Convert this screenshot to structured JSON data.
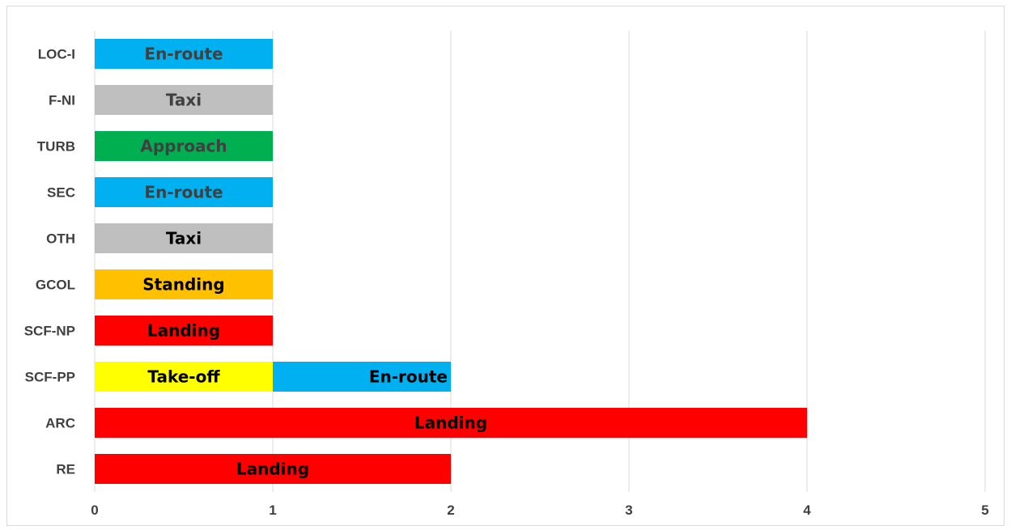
{
  "chart_data": {
    "type": "bar",
    "orientation": "horizontal",
    "stacked": true,
    "title": "",
    "xlabel": "",
    "ylabel": "",
    "xlim": [
      0,
      5
    ],
    "x_ticks": [
      "0",
      "1",
      "2",
      "3",
      "4",
      "5"
    ],
    "grid": true,
    "categories": [
      "LOC-I",
      "F-NI",
      "TURB",
      "SEC",
      "OTH",
      "GCOL",
      "SCF-NP",
      "SCF-PP",
      "ARC",
      "RE"
    ],
    "bars": [
      {
        "category": "LOC-I",
        "segments": [
          {
            "label": "En-route",
            "value": 1,
            "color": "#00b0f0",
            "text_color": "#404040"
          }
        ]
      },
      {
        "category": "F-NI",
        "segments": [
          {
            "label": "Taxi",
            "value": 1,
            "color": "#bfbfbf",
            "text_color": "#404040"
          }
        ]
      },
      {
        "category": "TURB",
        "segments": [
          {
            "label": "Approach",
            "value": 1,
            "color": "#00b050",
            "text_color": "#404040"
          }
        ]
      },
      {
        "category": "SEC",
        "segments": [
          {
            "label": "En-route",
            "value": 1,
            "color": "#00b0f0",
            "text_color": "#404040"
          }
        ]
      },
      {
        "category": "OTH",
        "segments": [
          {
            "label": "Taxi",
            "value": 1,
            "color": "#bfbfbf",
            "text_color": "#000000"
          }
        ]
      },
      {
        "category": "GCOL",
        "segments": [
          {
            "label": "Standing",
            "value": 1,
            "color": "#ffc000",
            "text_color": "#000000"
          }
        ]
      },
      {
        "category": "SCF-NP",
        "segments": [
          {
            "label": "Landing",
            "value": 1,
            "color": "#ff0000",
            "text_color": "#000000"
          }
        ]
      },
      {
        "category": "SCF-PP",
        "segments": [
          {
            "label": "Take-off",
            "value": 1,
            "color": "#ffff00",
            "text_color": "#000000"
          },
          {
            "label": "En-route",
            "value": 1,
            "color": "#00b0f0",
            "text_color": "#000000"
          }
        ]
      },
      {
        "category": "ARC",
        "segments": [
          {
            "label": "Landing",
            "value": 4,
            "color": "#ff0000",
            "text_color": "#000000"
          }
        ]
      },
      {
        "category": "RE",
        "segments": [
          {
            "label": "Landing",
            "value": 2,
            "color": "#ff0000",
            "text_color": "#000000"
          }
        ]
      }
    ]
  }
}
